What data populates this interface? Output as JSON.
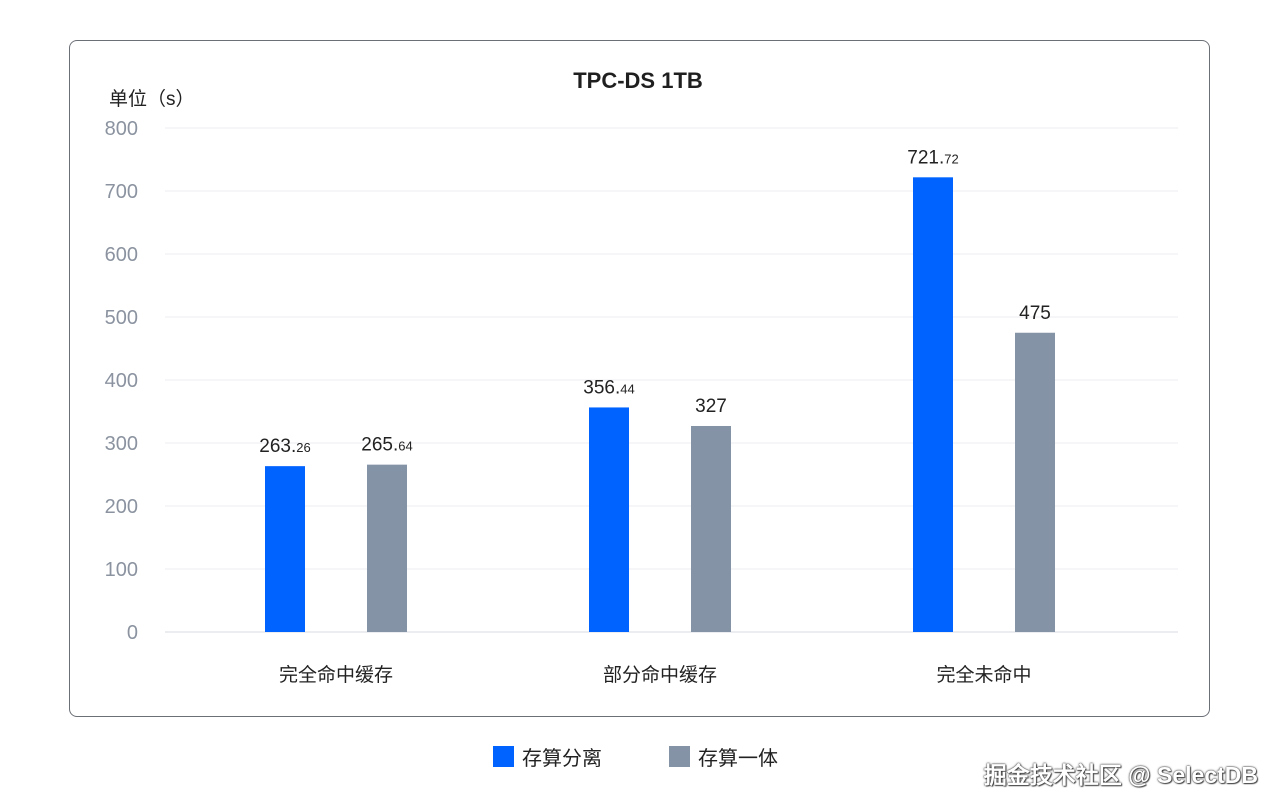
{
  "chart_data": {
    "type": "bar",
    "title": "TPC-DS 1TB",
    "ylabel": "单位（s）",
    "xlabel": "",
    "ylim": [
      0,
      800
    ],
    "yticks": [
      0,
      100,
      200,
      300,
      400,
      500,
      600,
      700,
      800
    ],
    "grid": true,
    "legend_position": "bottom-center",
    "categories": [
      "完全命中缓存",
      "部分命中缓存",
      "完全未命中"
    ],
    "series": [
      {
        "name": "存算分离",
        "color": "#0062ff",
        "values": [
          263.26,
          356.44,
          721.72
        ],
        "labels": [
          {
            "int": "263.",
            "frac": "26"
          },
          {
            "int": "356.",
            "frac": "44"
          },
          {
            "int": "721.",
            "frac": "72"
          }
        ]
      },
      {
        "name": "存算一体",
        "color": "#8593a6",
        "values": [
          265.64,
          327,
          475
        ],
        "labels": [
          {
            "int": "265.",
            "frac": "64"
          },
          {
            "int": "327",
            "frac": ""
          },
          {
            "int": "475",
            "frac": ""
          }
        ]
      }
    ]
  },
  "watermark": "掘金技术社区 @ SelectDB"
}
